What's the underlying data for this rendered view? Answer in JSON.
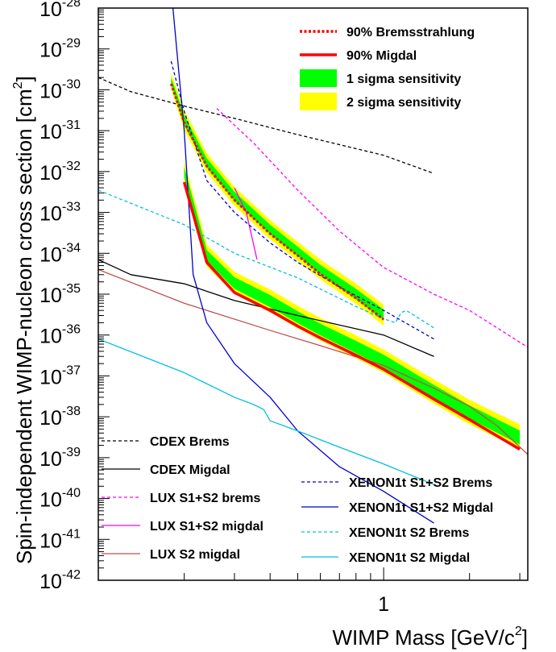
{
  "chart_data": {
    "type": "line",
    "title": "",
    "xlabel": "WIMP Mass [GeV/c",
    "xlabel_sup": "2",
    "xlabel_end": "]",
    "ylabel": "Spin-independent WIMP-nucleon cross section [cm",
    "ylabel_sup": "2",
    "ylabel_end": "]",
    "xscale": "log",
    "yscale": "log",
    "xlim": [
      0.1,
      3.2
    ],
    "ylim": [
      1e-42,
      1e-28
    ],
    "x_tick_labels": [
      {
        "value": 1,
        "label": "1"
      }
    ],
    "y_tick_labels": [
      {
        "exp": -28,
        "base": "10",
        "power": "-28"
      },
      {
        "exp": -29,
        "base": "10",
        "power": "-29"
      },
      {
        "exp": -30,
        "base": "10",
        "power": "-30"
      },
      {
        "exp": -31,
        "base": "10",
        "power": "-31"
      },
      {
        "exp": -32,
        "base": "10",
        "power": "-32"
      },
      {
        "exp": -33,
        "base": "10",
        "power": "-33"
      },
      {
        "exp": -34,
        "base": "10",
        "power": "-34"
      },
      {
        "exp": -35,
        "base": "10",
        "power": "-35"
      },
      {
        "exp": -36,
        "base": "10",
        "power": "-36"
      },
      {
        "exp": -37,
        "base": "10",
        "power": "-37"
      },
      {
        "exp": -38,
        "base": "10",
        "power": "-38"
      },
      {
        "exp": -39,
        "base": "10",
        "power": "-39"
      },
      {
        "exp": -40,
        "base": "10",
        "power": "-40"
      },
      {
        "exp": -41,
        "base": "10",
        "power": "-41"
      },
      {
        "exp": -42,
        "base": "10",
        "power": "-42"
      }
    ],
    "grid": false,
    "legend_top": {
      "placement": "top-right",
      "entries": [
        {
          "label": "90% Bremsstrahlung",
          "kind": "line",
          "color": "#ff0000",
          "dash": "dotted"
        },
        {
          "label": "90% Migdal",
          "kind": "line",
          "color": "#ff0000",
          "dash": "solid"
        },
        {
          "label": "1 sigma sensitivity",
          "kind": "box",
          "color": "#00ff00"
        },
        {
          "label": "2 sigma sensitivity",
          "kind": "box",
          "color": "#ffff00"
        }
      ]
    },
    "legend_left": {
      "placement": "bottom-left",
      "entries": [
        {
          "label": "CDEX Brems",
          "color": "#000000",
          "dash": "dashed"
        },
        {
          "label": "CDEX Migdal",
          "color": "#000000",
          "dash": "solid"
        },
        {
          "label": "LUX S1+S2 brems",
          "color": "#ff00ff",
          "dash": "dashed"
        },
        {
          "label": "LUX S1+S2 migdal",
          "color": "#ff00ff",
          "dash": "solid"
        },
        {
          "label": "LUX S2 migdal",
          "color": "#c0504d",
          "dash": "solid"
        }
      ]
    },
    "legend_right": {
      "placement": "bottom-right",
      "entries": [
        {
          "label": "XENON1t S1+S2 Brems",
          "color": "#0000cc",
          "dash": "dashed"
        },
        {
          "label": "XENON1t S1+S2 Migdal",
          "color": "#0000cc",
          "dash": "solid"
        },
        {
          "label": "XENON1t S2 Brems",
          "color": "#00c0e0",
          "dash": "dashed"
        },
        {
          "label": "XENON1t S2 Migdal",
          "color": "#00c0e0",
          "dash": "solid"
        }
      ]
    },
    "bands": [
      {
        "name": "Bremsstrahlung sensitivity",
        "x": [
          0.18,
          0.2,
          0.24,
          0.3,
          0.4,
          0.5,
          0.6,
          0.8,
          1.0
        ],
        "sigma2_upper": [
          2.6e-30,
          3.2e-31,
          2.8e-32,
          4.2e-33,
          6.5e-34,
          1.9e-34,
          7e-35,
          1.8e-35,
          5.5e-36
        ],
        "sigma1_upper": [
          2e-30,
          2.4e-31,
          2.1e-32,
          3.2e-33,
          5e-34,
          1.45e-34,
          5.2e-35,
          1.35e-35,
          4.2e-36
        ],
        "sigma1_lower": [
          1.3e-30,
          1.35e-31,
          1.25e-32,
          1.9e-33,
          2.9e-34,
          8.5e-35,
          3e-35,
          7.5e-36,
          2.3e-36
        ],
        "sigma2_lower": [
          1.05e-30,
          1.05e-31,
          9.5e-33,
          1.45e-33,
          2.2e-34,
          6.5e-35,
          2.3e-35,
          5.8e-36,
          1.7e-36
        ]
      },
      {
        "name": "Migdal sensitivity",
        "x": [
          0.2,
          0.24,
          0.3,
          0.4,
          0.5,
          0.6,
          0.8,
          1.0,
          1.5,
          2.0,
          3.0
        ],
        "sigma2_upper": [
          1.8e-32,
          1.6e-34,
          3.5e-35,
          1.3e-35,
          5.2e-36,
          2.6e-36,
          9.8e-37,
          4.4e-37,
          8.2e-38,
          2.6e-38,
          6.5e-39
        ],
        "sigma1_upper": [
          1.3e-32,
          1.2e-34,
          2.6e-35,
          9.5e-36,
          3.8e-36,
          1.9e-36,
          7.2e-37,
          3.3e-37,
          6e-38,
          1.9e-38,
          4.6e-39
        ],
        "sigma1_lower": [
          7.5e-33,
          6.5e-35,
          1.35e-35,
          4.8e-36,
          1.95e-36,
          9.8e-37,
          3.6e-37,
          1.6e-37,
          2.9e-38,
          9e-39,
          2.1e-39
        ],
        "sigma2_lower": [
          5.5e-33,
          4.8e-35,
          1e-35,
          3.6e-36,
          1.45e-36,
          7.3e-37,
          2.7e-37,
          1.2e-37,
          2.1e-38,
          6.5e-39,
          1.6e-39
        ]
      }
    ],
    "series": [
      {
        "name": "90% Bremsstrahlung",
        "color": "#ff0000",
        "dash": "dotted",
        "width": 3,
        "x": [
          0.18,
          0.2,
          0.24,
          0.3,
          0.4,
          0.5,
          0.6,
          0.8,
          1.0
        ],
        "y": [
          1.4e-30,
          1.6e-31,
          1.35e-32,
          2e-33,
          3e-34,
          8.8e-35,
          3.1e-35,
          8e-36,
          2.4e-36
        ]
      },
      {
        "name": "90% Migdal",
        "color": "#ff0000",
        "dash": "solid",
        "width": 3.5,
        "x": [
          0.2,
          0.24,
          0.3,
          0.4,
          0.5,
          0.6,
          0.8,
          1.0,
          1.5,
          2.0,
          3.0
        ],
        "y": [
          5.5e-33,
          6e-35,
          1.1e-35,
          4e-36,
          1.65e-36,
          8.5e-37,
          3.2e-37,
          1.45e-37,
          2.7e-38,
          8.5e-39,
          1.6e-39
        ]
      },
      {
        "name": "CDEX Brems",
        "color": "#000000",
        "dash": "dashed",
        "width": 1.3,
        "x": [
          0.1,
          0.13,
          0.2,
          0.3,
          0.5,
          1.0,
          1.5
        ],
        "y": [
          2e-30,
          9e-31,
          4e-31,
          2e-31,
          8e-32,
          2.5e-32,
          9e-33
        ]
      },
      {
        "name": "CDEX Migdal",
        "color": "#000000",
        "dash": "solid",
        "width": 1.3,
        "x": [
          0.1,
          0.13,
          0.2,
          0.3,
          0.5,
          1.0,
          1.5
        ],
        "y": [
          7e-35,
          3e-35,
          1.8e-35,
          7e-36,
          3e-36,
          1e-36,
          3e-37
        ]
      },
      {
        "name": "LUX S1+S2 brems",
        "color": "#ff00ff",
        "dash": "dashed",
        "width": 1.3,
        "x": [
          0.26,
          0.35,
          0.5,
          0.7,
          1.0,
          1.5,
          2.0,
          3.2
        ],
        "y": [
          3.5e-31,
          5e-32,
          3.5e-33,
          3.5e-34,
          4.5e-35,
          1e-35,
          4e-36,
          5e-37
        ]
      },
      {
        "name": "LUX S1+S2 migdal",
        "color": "#ff00ff",
        "dash": "solid",
        "width": 1.3,
        "x": [
          0.3,
          0.33,
          0.36
        ],
        "y": [
          4e-33,
          1e-33,
          7e-35
        ]
      },
      {
        "name": "LUX S2 migdal",
        "color": "#c0504d",
        "dash": "solid",
        "width": 1.3,
        "x": [
          0.1,
          0.2,
          0.4,
          0.6,
          1.0,
          1.5,
          2.0,
          2.5,
          3.2
        ],
        "y": [
          4e-35,
          6e-36,
          1.3e-36,
          5.5e-37,
          1.8e-37,
          5e-38,
          1.8e-38,
          6e-39,
          1.2e-39
        ]
      },
      {
        "name": "XENON1t S1+S2 Brems",
        "color": "#0000cc",
        "dash": "dashed",
        "width": 1.3,
        "x": [
          0.18,
          0.2,
          0.24,
          0.3,
          0.4,
          0.5,
          0.7,
          1.0,
          1.5
        ],
        "y": [
          5e-30,
          3e-31,
          6e-33,
          1e-33,
          1.8e-34,
          6e-35,
          1.5e-35,
          4e-36,
          8e-37
        ]
      },
      {
        "name": "XENON1t S1+S2 Migdal",
        "color": "#0000cc",
        "dash": "solid",
        "width": 1.3,
        "x": [
          0.18,
          0.2,
          0.215,
          0.24,
          0.3,
          0.4,
          0.5,
          0.7,
          1.0,
          1.5
        ],
        "y": [
          3e-28,
          1e-31,
          3e-35,
          2e-36,
          2e-37,
          3e-38,
          4.5e-39,
          6e-40,
          1.5e-40,
          2.5e-41
        ]
      },
      {
        "name": "XENON1t S2 Brems",
        "color": "#00c0e0",
        "dash": "dashed",
        "width": 1.3,
        "x": [
          0.1,
          0.2,
          0.3,
          0.5,
          0.8,
          1.0,
          1.1,
          1.15,
          1.2,
          1.5
        ],
        "y": [
          3.5e-33,
          5e-34,
          1e-34,
          2.5e-35,
          5e-36,
          2.5e-36,
          2e-36,
          3.5e-36,
          4e-36,
          1.5e-36
        ]
      },
      {
        "name": "XENON1t S2 Migdal",
        "color": "#00c0e0",
        "dash": "solid",
        "width": 1.3,
        "x": [
          0.1,
          0.2,
          0.3,
          0.35,
          0.38,
          0.4,
          0.5,
          0.7,
          1.0,
          1.5
        ],
        "y": [
          8e-37,
          1.2e-37,
          3e-38,
          2e-38,
          1.5e-38,
          8e-39,
          4.5e-39,
          1.8e-39,
          7e-40,
          2.2e-40
        ]
      }
    ]
  }
}
